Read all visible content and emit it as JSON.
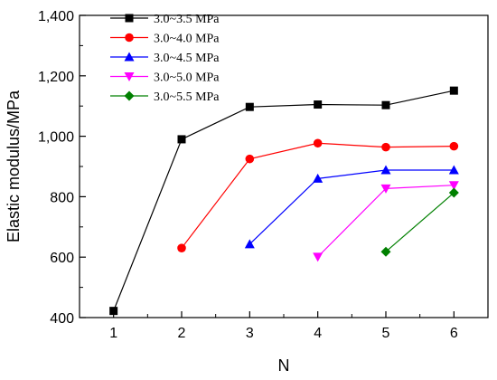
{
  "chart_data": {
    "type": "line",
    "xlabel": "N",
    "ylabel": "Elastic modulus/MPa",
    "x_ticks": [
      "1",
      "2",
      "3",
      "4",
      "5",
      "6"
    ],
    "y_ticks": [
      "400",
      "600",
      "800",
      "1,000",
      "1,200",
      "1,400"
    ],
    "xlim": [
      0.5,
      6.5
    ],
    "ylim": [
      400,
      1400
    ],
    "grid": false,
    "legend_position": "top-left",
    "series": [
      {
        "name": "3.0~3.5 MPa",
        "color": "#000000",
        "marker": "square",
        "x": [
          1,
          2,
          3,
          4,
          5,
          6
        ],
        "y": [
          422,
          990,
          1097,
          1105,
          1103,
          1151
        ]
      },
      {
        "name": "3.0~4.0 MPa",
        "color": "#ff0000",
        "marker": "circle",
        "x": [
          2,
          3,
          4,
          5,
          6
        ],
        "y": [
          630,
          925,
          977,
          964,
          967
        ]
      },
      {
        "name": "3.0~4.5 MPa",
        "color": "#0000ff",
        "marker": "triangle-up",
        "x": [
          3,
          4,
          5,
          6
        ],
        "y": [
          643,
          860,
          888,
          888
        ]
      },
      {
        "name": "3.0~5.0 MPa",
        "color": "#ff00ff",
        "marker": "triangle-down",
        "x": [
          4,
          5,
          6
        ],
        "y": [
          601,
          827,
          838
        ]
      },
      {
        "name": "3.0~5.5 MPa",
        "color": "#008000",
        "marker": "diamond",
        "x": [
          5,
          6
        ],
        "y": [
          618,
          813
        ]
      }
    ]
  }
}
